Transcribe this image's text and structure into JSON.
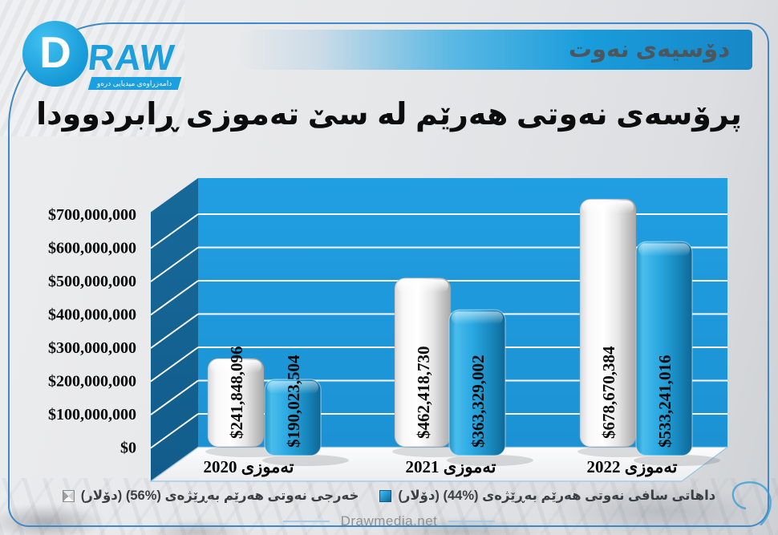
{
  "header": {
    "logo": {
      "d": "D",
      "raw": "RAW",
      "tagline": "دامەزراوەی میدیایی درەو"
    },
    "banner_label": "دۆسیەی نەوت"
  },
  "title": "پرۆسەی نەوتی هەرێم لە سێ تەموزی ڕابردوودا",
  "chart_data": {
    "type": "bar",
    "style": "3d-rounded-bars",
    "categories": [
      "تەموزی 2020",
      "تەموزی 2021",
      "تەموزی 2022"
    ],
    "series": [
      {
        "name": "خەرجی نەوتی هەرێم بەڕێژەی (%56) (دۆلار)",
        "color": "#F4F4F4",
        "values": [
          241848096,
          462418730,
          678670384
        ],
        "labels": [
          "$241,848,096",
          "$462,418,730",
          "$678,670,384"
        ]
      },
      {
        "name": "داهاتی سافی نەوتی هەرێم بەڕێژەی (%44) (دۆلار)",
        "color": "#2196D3",
        "values": [
          190023504,
          363329002,
          533241016
        ],
        "labels": [
          "$190,023,504",
          "$363,329,002",
          "$533,241,016"
        ]
      }
    ],
    "y_axis": {
      "min": 0,
      "max": 700000000,
      "step": 100000000,
      "tick_labels": [
        "$0",
        "$100,000,000",
        "$200,000,000",
        "$300,000,000",
        "$400,000,000",
        "$500,000,000",
        "$600,000,000",
        "$700,000,000"
      ]
    },
    "legend_position": "bottom",
    "grid": true
  },
  "legend": {
    "items": [
      {
        "label": "خەرجی نەوتی هەرێم بەڕێژەی (%56) (دۆلار)",
        "marker": "white-square"
      },
      {
        "label": "داهاتی سافی نەوتی هەرێم بەڕێژەی (%44) (دۆلار)",
        "marker": "blue-square"
      }
    ]
  },
  "footer": {
    "site": "Drawmedia.net"
  },
  "colors": {
    "accent": "#1C9CD9",
    "wall_back": "#1F9FE0",
    "wall_side": "#14618D",
    "bar_blue": "#2196D3",
    "bar_white": "#F4F4F4",
    "banner_text": "#4D565C",
    "grid_line": "#FFFFFF",
    "axis_line": "#9CC6E6"
  }
}
